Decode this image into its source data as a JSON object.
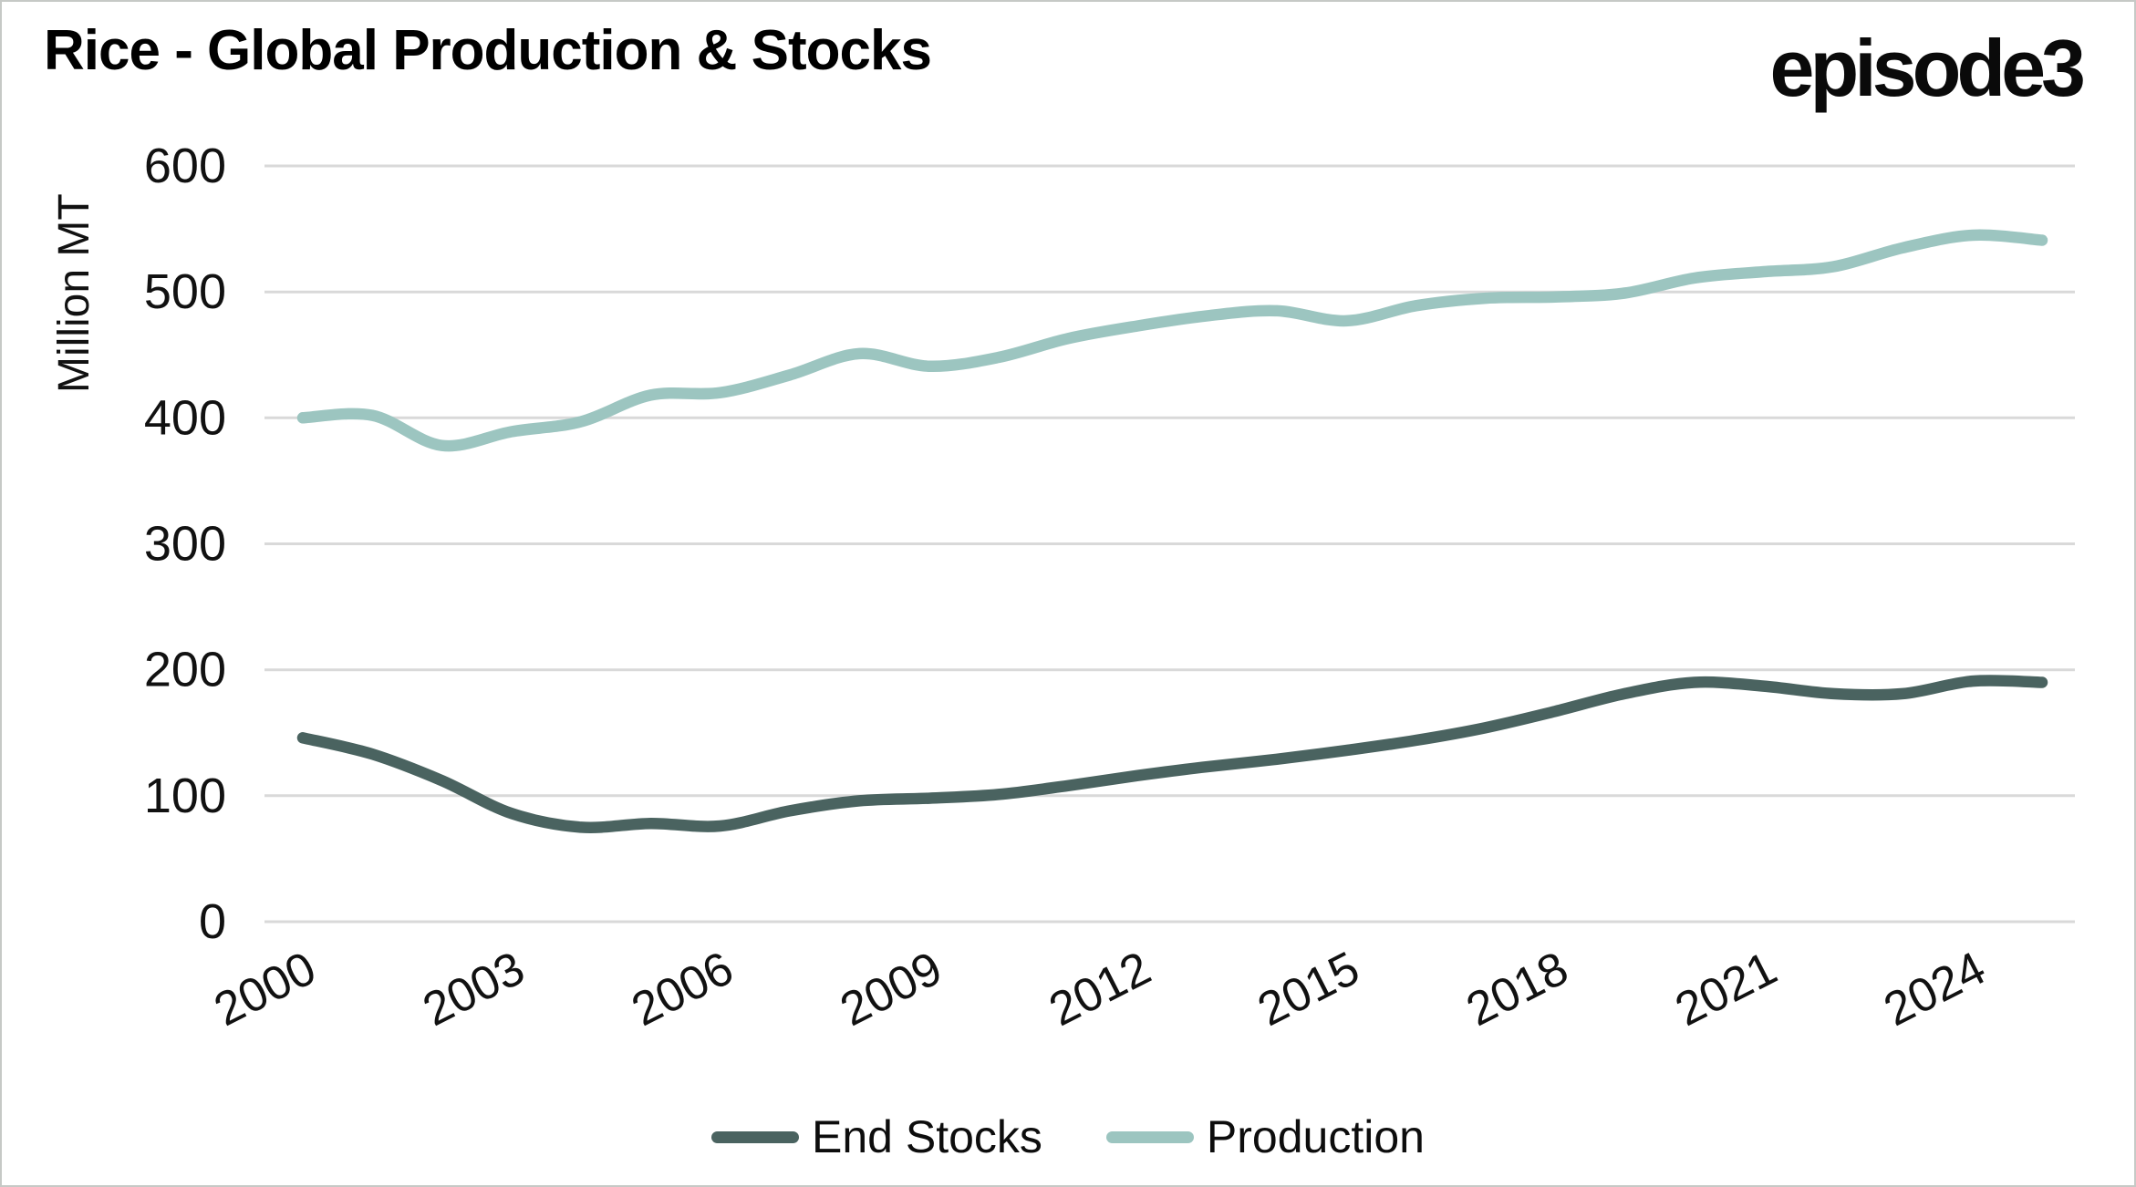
{
  "header": {
    "title": "Rice - Global Production & Stocks",
    "logo_text": "episode3"
  },
  "colors": {
    "background": "#ffffff",
    "frame_border": "#c6c9c6",
    "gridline": "#d9d9d9",
    "axis_text": "#111111",
    "title_text": "#000000",
    "end_stocks_line": "#4a6360",
    "production_line": "#9cc5c0"
  },
  "chart_data": {
    "type": "line",
    "title": "Rice - Global Production & Stocks",
    "xlabel": "",
    "ylabel": "Million MT",
    "ylim": [
      0,
      600
    ],
    "yticks": [
      0,
      100,
      200,
      300,
      400,
      500,
      600
    ],
    "xticks": [
      2000,
      2003,
      2006,
      2009,
      2012,
      2015,
      2018,
      2021,
      2024
    ],
    "grid": "horizontal",
    "legend_position": "bottom",
    "x": [
      2000,
      2001,
      2002,
      2003,
      2004,
      2005,
      2006,
      2007,
      2008,
      2009,
      2010,
      2011,
      2012,
      2013,
      2014,
      2015,
      2016,
      2017,
      2018,
      2019,
      2020,
      2021,
      2022,
      2023,
      2024,
      2025
    ],
    "series": [
      {
        "name": "End Stocks",
        "color": "#4a6360",
        "values": [
          146,
          133,
          112,
          86,
          75,
          78,
          76,
          88,
          96,
          98,
          101,
          108,
          116,
          123,
          129,
          136,
          144,
          154,
          167,
          181,
          190,
          187,
          181,
          181,
          191,
          190
        ]
      },
      {
        "name": "Production",
        "color": "#9cc5c0",
        "values": [
          400,
          402,
          378,
          389,
          397,
          418,
          420,
          434,
          451,
          441,
          448,
          463,
          473,
          481,
          485,
          477,
          489,
          495,
          496,
          499,
          511,
          516,
          520,
          535,
          545,
          541
        ]
      }
    ]
  },
  "legend": {
    "items": [
      {
        "label": "End Stocks",
        "color": "#4a6360"
      },
      {
        "label": "Production",
        "color": "#9cc5c0"
      }
    ]
  }
}
